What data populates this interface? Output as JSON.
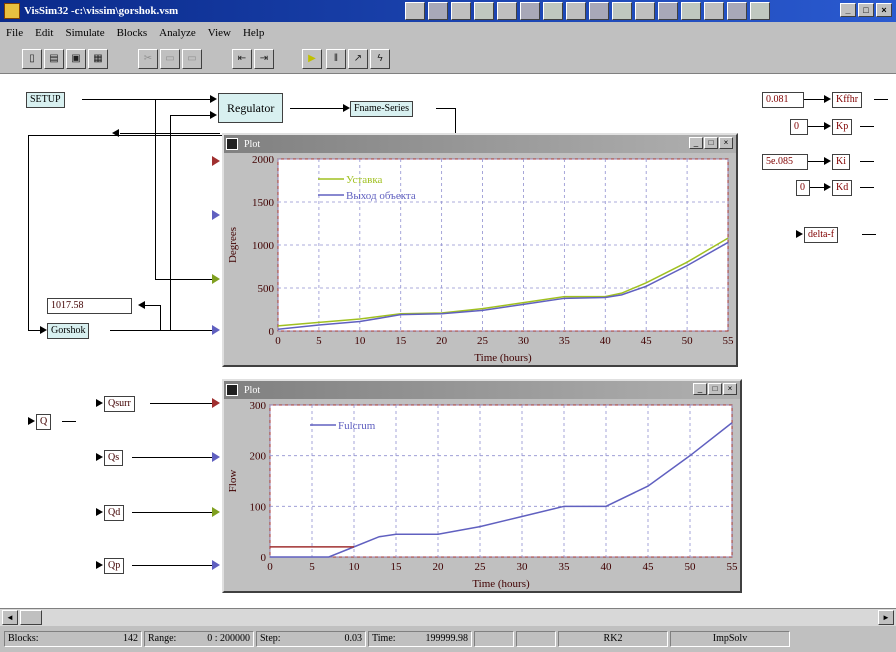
{
  "window": {
    "title": "VisSim32 -c:\\vissim\\gorshok.vsm",
    "controls": [
      "_",
      "□",
      "×"
    ]
  },
  "menu": [
    "File",
    "Edit",
    "Simulate",
    "Blocks",
    "Analyze",
    "View",
    "Help"
  ],
  "canvas_blocks": {
    "setup": "SETUP",
    "regulator": "Regulator",
    "fname_series": "Fname-Series",
    "display_value": "1017.58",
    "gorshok": "Gorshok",
    "q": "Q",
    "qsurr": "Qsurr",
    "qs": "Qs",
    "qd": "Qd",
    "qp": "Qp",
    "c1": "0.081",
    "c2": "0",
    "c3": "5e.085",
    "c4": "0",
    "k_lbl1": "Kffhr",
    "k_lbl2": "Kp",
    "k_lbl3": "Ki",
    "k_lbl4": "Kd",
    "delta": "delta-f"
  },
  "plots": [
    {
      "title": "Plot",
      "ylabel": "Degrees",
      "xlabel": "Time (hours)",
      "legend": [
        "Уставка",
        "Выход объекта"
      ]
    },
    {
      "title": "Plot",
      "ylabel": "Flow",
      "xlabel": "Time (hours)",
      "legend": [
        "Fulcrum"
      ]
    }
  ],
  "chart_data": [
    {
      "type": "line",
      "title": "Plot",
      "xlabel": "Time (hours)",
      "ylabel": "Degrees",
      "xlim": [
        0,
        55
      ],
      "ylim": [
        0,
        2000
      ],
      "xticks": [
        0,
        5,
        10,
        15,
        20,
        25,
        30,
        35,
        40,
        45,
        50,
        55
      ],
      "yticks": [
        0,
        500,
        1000,
        1500,
        2000
      ],
      "grid": true,
      "legend_position": "top-left",
      "series": [
        {
          "name": "Уставка",
          "color": "#a0c020",
          "x": [
            0,
            5,
            10,
            15,
            20,
            25,
            30,
            35,
            40,
            42,
            45,
            50,
            55
          ],
          "y": [
            60,
            100,
            140,
            200,
            210,
            260,
            330,
            400,
            400,
            440,
            560,
            800,
            1080
          ]
        },
        {
          "name": "Выход объекта",
          "color": "#6060c0",
          "x": [
            0,
            5,
            10,
            15,
            20,
            25,
            30,
            35,
            40,
            42,
            45,
            50,
            55
          ],
          "y": [
            20,
            70,
            110,
            190,
            200,
            240,
            310,
            380,
            390,
            420,
            520,
            760,
            1030
          ]
        }
      ]
    },
    {
      "type": "line",
      "title": "Plot",
      "xlabel": "Time (hours)",
      "ylabel": "Flow",
      "xlim": [
        0,
        55
      ],
      "ylim": [
        0,
        300
      ],
      "xticks": [
        0,
        5,
        10,
        15,
        20,
        25,
        30,
        35,
        40,
        45,
        50,
        55
      ],
      "yticks": [
        0,
        100,
        200,
        300
      ],
      "grid": true,
      "legend_position": "top-left",
      "series": [
        {
          "name": "Fulcrum",
          "color": "#6060c0",
          "x": [
            0,
            7,
            10,
            13,
            15,
            20,
            25,
            30,
            35,
            40,
            45,
            50,
            55
          ],
          "y": [
            0,
            0,
            20,
            40,
            45,
            45,
            60,
            80,
            100,
            100,
            140,
            200,
            265
          ]
        },
        {
          "name": "",
          "color": "#a03030",
          "x": [
            0,
            10
          ],
          "y": [
            20,
            20
          ]
        }
      ]
    }
  ],
  "scrollbar": {
    "left": "◄",
    "right": "►"
  },
  "status": {
    "blocks_label": "Blocks:",
    "blocks_val": "142",
    "range_label": "Range:",
    "range_val": "0 : 200000",
    "step_label": "Step:",
    "step_val": "0.03",
    "time_label": "Time:",
    "time_val": "199999.98",
    "method": "RK2",
    "solver": "ImpSolv"
  }
}
